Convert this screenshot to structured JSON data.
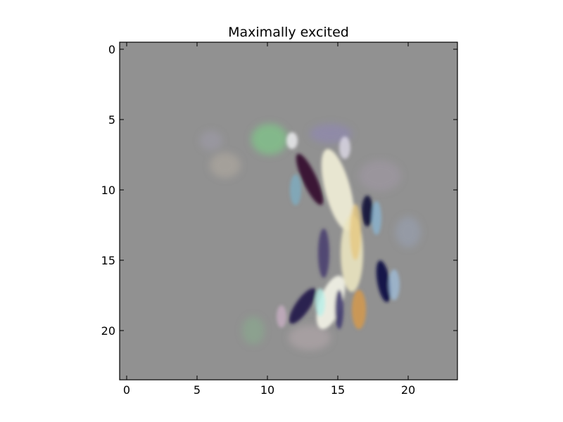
{
  "title": "Maximally excited",
  "x_tick_labels": [
    "0",
    "5",
    "10",
    "15",
    "20"
  ],
  "y_tick_labels": [
    "0",
    "5",
    "10",
    "15",
    "20"
  ],
  "image_description_color": "#919191"
}
